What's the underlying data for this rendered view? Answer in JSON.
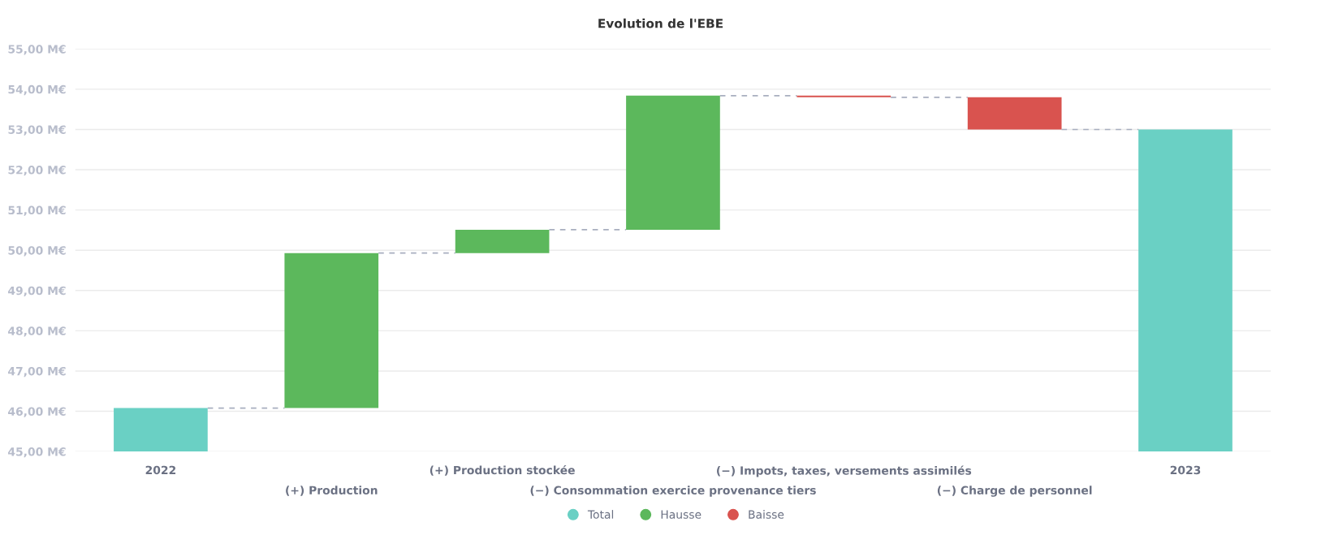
{
  "chart_data": {
    "type": "bar",
    "title": "Evolution de l'EBE",
    "categories": [
      "2022",
      "(+) Production",
      "(+) Production stockée",
      "(−) Consommation exercice provenance tiers",
      "(−) Impots, taxes, versements assimilés",
      "(−) Charge de personnel",
      "2023"
    ],
    "series": [
      {
        "name": "Total",
        "color": "#6ad0c4",
        "values": [
          46.08,
          null,
          null,
          null,
          null,
          null,
          53.0
        ]
      },
      {
        "name": "Hausse",
        "color": "#5cb85c",
        "base": [
          null,
          46.08,
          49.93,
          50.51,
          null,
          null,
          null
        ],
        "values": [
          null,
          3.85,
          0.58,
          3.33,
          null,
          null,
          null
        ]
      },
      {
        "name": "Baisse",
        "color": "#d9534f",
        "base": [
          null,
          null,
          null,
          null,
          53.84,
          53.8,
          null
        ],
        "values": [
          null,
          null,
          null,
          null,
          -0.04,
          -0.8,
          null
        ]
      }
    ],
    "ylim": [
      45,
      55
    ],
    "yticks": [
      {
        "value": 45,
        "label": "45,00 M€"
      },
      {
        "value": 46,
        "label": "46,00 M€"
      },
      {
        "value": 47,
        "label": "47,00 M€"
      },
      {
        "value": 48,
        "label": "48,00 M€"
      },
      {
        "value": 49,
        "label": "49,00 M€"
      },
      {
        "value": 50,
        "label": "50,00 M€"
      },
      {
        "value": 51,
        "label": "51,00 M€"
      },
      {
        "value": 52,
        "label": "52,00 M€"
      },
      {
        "value": 53,
        "label": "53,00 M€"
      },
      {
        "value": 54,
        "label": "54,00 M€"
      },
      {
        "value": 55,
        "label": "55,00 M€"
      }
    ],
    "grid": "y",
    "legend": "bottom"
  }
}
